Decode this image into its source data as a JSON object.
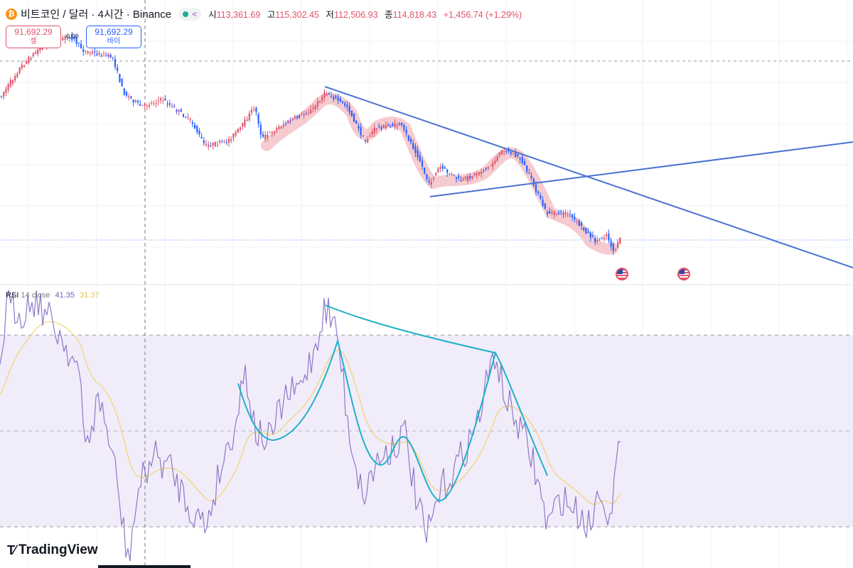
{
  "header": {
    "symbol": "비트코인 / 달러 · 4시간 · Binance",
    "coin_icon": "bitcoin-icon",
    "open_label": "시",
    "open": "113,361.69",
    "high_label": "고",
    "high": "115,302.45",
    "low_label": "저",
    "low": "112,506.93",
    "close_label": "종",
    "close": "114,818.43",
    "change": "+1,456.74 (+1.29%)"
  },
  "trade": {
    "sell_price": "91,692.29",
    "sell_label": "셀",
    "buy_price": "91,692.29",
    "buy_label": "바이",
    "spread": "0.00"
  },
  "rsi": {
    "name": "RSI",
    "params": "14 close",
    "value": "41.35",
    "ma_value": "31.37"
  },
  "brand": {
    "logo_text": "TradingView"
  },
  "colors": {
    "up": "#e0546b",
    "down": "#2962ff",
    "trendline": "#4a72d0",
    "rsi_line": "#7e57c2",
    "rsi_ma": "#f2d36b",
    "rsi_band": "#f1ecfa",
    "rsi_curve": "#1fb0c8",
    "highlight": "#f5c2c8"
  },
  "events": [
    "us-flag-icon",
    "us-flag-icon"
  ]
}
